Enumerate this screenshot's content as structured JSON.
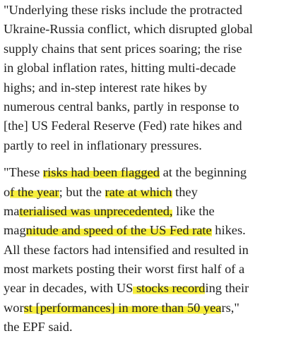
{
  "paragraphs": [
    {
      "lines": [
        [
          "\"Underlying these risks include the protracted"
        ],
        [
          "Ukraine-Russia conflict, which disrupted global"
        ],
        [
          "supply chains that sent prices soaring; the rise"
        ],
        [
          "in global inflation rates, hitting multi-decade"
        ],
        [
          "highs; and in-step interest rate hikes by"
        ],
        [
          "numerous central banks, partly in response to"
        ],
        [
          "[the] US Federal Reserve (Fed) rate hikes and"
        ],
        [
          "partly to reel in inflationary pressures."
        ]
      ]
    },
    {
      "lines": [
        [
          "\"These ",
          {
            "text": "risks had been flagged",
            "highlight": true
          },
          " at the beginning"
        ],
        [
          "o",
          {
            "text": "f the year",
            "highlight": true
          },
          "; but the ",
          {
            "text": "rate at which",
            "highlight": true
          },
          " they"
        ],
        [
          "ma",
          {
            "text": "terialised was unprecedented,",
            "highlight": true
          },
          " like the"
        ],
        [
          "mag",
          {
            "text": "nitude and speed of the US Fed rate",
            "highlight": true
          },
          " hikes."
        ],
        [
          "All these factors had intensified and resulted in"
        ],
        [
          "most markets posting their worst first half of a"
        ],
        [
          "year in decades, with US",
          {
            "text": " stocks record",
            "highlight": true
          },
          "ing their"
        ],
        [
          "wor",
          {
            "text": "st [performances] in more than 50 yea",
            "highlight": true
          },
          "rs,\""
        ],
        [
          "the EPF said."
        ]
      ]
    }
  ]
}
